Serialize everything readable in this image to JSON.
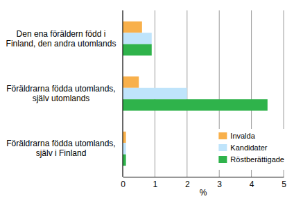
{
  "chart_data": {
    "type": "bar",
    "orientation": "horizontal",
    "categories": [
      "Den ena föräldern född i Finland, den andra utomlands",
      "Föräldrarna födda utomlands, själv utomlands",
      "Föräldrarna födda utomlands, själv i Finland"
    ],
    "series": [
      {
        "name": "Invalda",
        "color": "#f8b04b",
        "values": [
          0.6,
          0.5,
          0.1
        ]
      },
      {
        "name": "Kandidater",
        "color": "#bfe4fb",
        "values": [
          0.9,
          2.0,
          0.1
        ]
      },
      {
        "name": "Röstberättigade",
        "color": "#2fb34b",
        "values": [
          0.9,
          4.5,
          0.1
        ]
      }
    ],
    "xlabel": "%",
    "xlim": [
      0,
      5
    ],
    "xticks": [
      0,
      1,
      2,
      3,
      4,
      5
    ],
    "grid": true,
    "legend": "lower right"
  }
}
